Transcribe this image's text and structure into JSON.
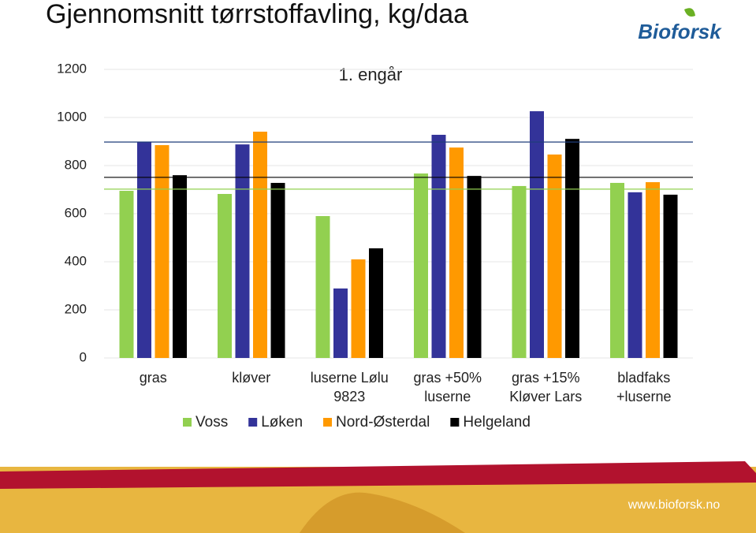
{
  "chart_data": {
    "type": "bar",
    "title": "Gjennomsnitt tørrstoffavling, kg/daa",
    "subtitle": "1. engår",
    "categories": [
      [
        "gras"
      ],
      [
        "kløver"
      ],
      [
        "luserne Lølu",
        "9823"
      ],
      [
        "gras +50%",
        "luserne"
      ],
      [
        "gras +15%",
        "Kløver Lars"
      ],
      [
        "bladfaks",
        "+luserne"
      ]
    ],
    "series": [
      {
        "name": "Voss",
        "color": "#92d050",
        "values": [
          695,
          682,
          590,
          767,
          715,
          728
        ]
      },
      {
        "name": "Løken",
        "color": "#333399",
        "values": [
          898,
          888,
          289,
          928,
          1026,
          689
        ]
      },
      {
        "name": "Nord-Østerdal",
        "color": "#ff9900",
        "values": [
          885,
          941,
          410,
          875,
          846,
          731
        ]
      },
      {
        "name": "Helgeland",
        "color": "#000000",
        "values": [
          760,
          728,
          456,
          757,
          911,
          679
        ]
      }
    ],
    "hlines": [
      {
        "value": 898,
        "color": "#1f3d7a"
      },
      {
        "value": 751,
        "color": "#000000"
      },
      {
        "value": 702,
        "color": "#92d050"
      }
    ],
    "ylim": [
      0,
      1200
    ],
    "yticks": [
      0,
      200,
      400,
      600,
      800,
      1000,
      1200
    ],
    "grid": true
  },
  "logo": "Bioforsk",
  "footer": "www.bioforsk.no"
}
